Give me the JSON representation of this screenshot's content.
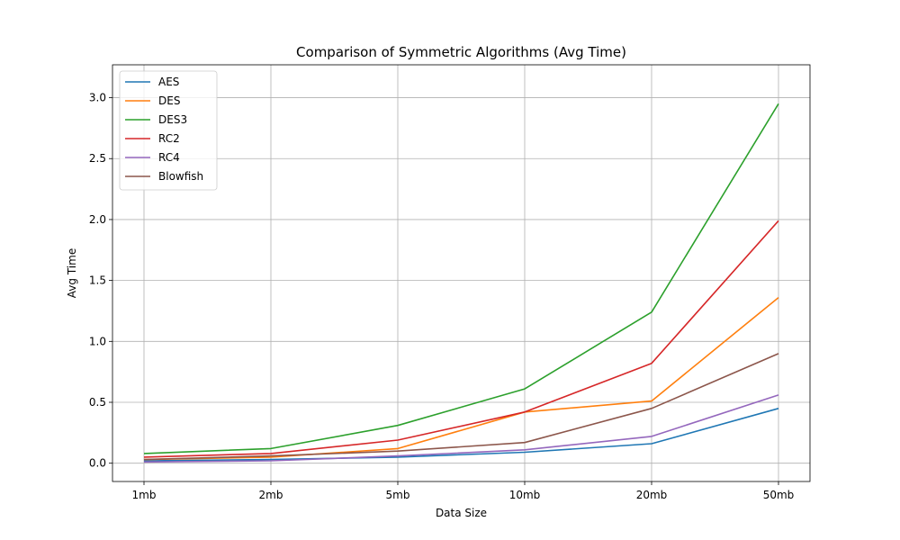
{
  "chart_data": {
    "type": "line",
    "title": "Comparison of Symmetric Algorithms (Avg Time)",
    "xlabel": "Data Size",
    "ylabel": "Avg Time",
    "categories": [
      "1mb",
      "2mb",
      "5mb",
      "10mb",
      "20mb",
      "50mb"
    ],
    "ylim": [
      -0.15,
      3.27
    ],
    "yticks": [
      0.0,
      0.5,
      1.0,
      1.5,
      2.0,
      2.5,
      3.0
    ],
    "ytick_labels": [
      "0.0",
      "0.5",
      "1.0",
      "1.5",
      "2.0",
      "2.5",
      "3.0"
    ],
    "grid": true,
    "legend_position": "top-left",
    "series": [
      {
        "name": "AES",
        "color": "#1f77b4",
        "values": [
          0.02,
          0.03,
          0.05,
          0.09,
          0.16,
          0.45
        ]
      },
      {
        "name": "DES",
        "color": "#ff7f0e",
        "values": [
          0.03,
          0.05,
          0.12,
          0.42,
          0.51,
          1.36
        ]
      },
      {
        "name": "DES3",
        "color": "#2ca02c",
        "values": [
          0.08,
          0.12,
          0.31,
          0.61,
          1.24,
          2.95
        ]
      },
      {
        "name": "RC2",
        "color": "#d62728",
        "values": [
          0.05,
          0.08,
          0.19,
          0.42,
          0.82,
          1.99
        ]
      },
      {
        "name": "RC4",
        "color": "#9467bd",
        "values": [
          0.01,
          0.02,
          0.06,
          0.11,
          0.22,
          0.56
        ]
      },
      {
        "name": "Blowfish",
        "color": "#8c564b",
        "values": [
          0.03,
          0.06,
          0.1,
          0.17,
          0.45,
          0.9
        ]
      }
    ]
  }
}
